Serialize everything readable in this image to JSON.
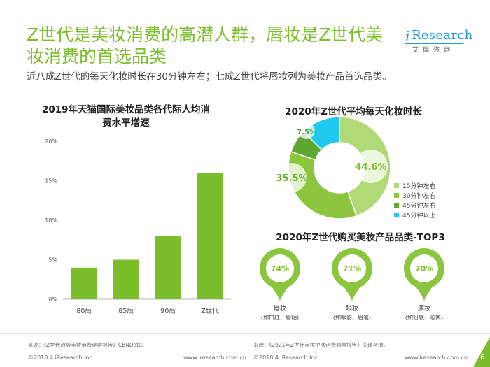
{
  "header": {
    "title": "Z世代是美妆消费的高潜人群，唇妆是Z世代美妆消费的首选品类",
    "subtitle": "近八成Z世代的每天化妆时长在30分钟左右；七成Z世代将唇妆列为美妆产品首选品类。"
  },
  "logo": {
    "mark_i": "i",
    "mark_text": "Research",
    "cn": "艾瑞咨询"
  },
  "colors": {
    "accent": "#7cbd2c",
    "brand_blue": "#1e9ac9"
  },
  "chart_data": [
    {
      "type": "bar",
      "title": "2019年天猫国际美妆品类各代际人均消费水平增速",
      "categories": [
        "80后",
        "85后",
        "90后",
        "Z世代"
      ],
      "values": [
        4,
        5,
        8,
        16
      ],
      "ylim": [
        0,
        20
      ],
      "ytick_labels": [
        "0%",
        "5%",
        "10%",
        "15%",
        "20%"
      ],
      "color": "#7cbd2c",
      "grid": false
    },
    {
      "type": "pie",
      "donut": true,
      "title": "2020年Z世代平均每天化妆时长",
      "slices": [
        {
          "name": "15分钟左右",
          "value": 44.6,
          "label": "44.6%",
          "color": "#b2d977"
        },
        {
          "name": "30分钟左右",
          "value": 35.5,
          "label": "35.5%",
          "color": "#8cc63f"
        },
        {
          "name": "45分钟左右",
          "value": 7.5,
          "label": "7.5%",
          "color": "#5ca830"
        },
        {
          "name": "45分钟以上",
          "value": 12.4,
          "label": "",
          "color": "#1ec8ef"
        }
      ],
      "legend_position": "bottom-right"
    },
    {
      "type": "bar",
      "title": "2020年Z世代购买美妆产品品类-TOP3",
      "categories": [
        "唇妆",
        "眼妆",
        "底妆"
      ],
      "values": [
        74,
        71,
        70
      ],
      "value_labels": [
        "74%",
        "71%",
        "70%"
      ],
      "sublabels": [
        "(如口红、唇釉)",
        "(如眼影、眉笔)",
        "(如粉底、隔离)"
      ],
      "color": "#8cc63f"
    }
  ],
  "sources": {
    "left": "来源：《Z世代趋势美妆消费洞察报告》CBNData。",
    "right": "来源：《2021年Z世代美妆护肤消费洞察报告》艾瑞咨询。"
  },
  "footer": {
    "copyright_left": "©2018.4 iResearch Inc",
    "url_left": "www.iresearch.com.cn",
    "copyright_right": "©2018.4 iResearch Inc",
    "url_right": "www.iresearch.com.cn",
    "page_number": "6"
  }
}
